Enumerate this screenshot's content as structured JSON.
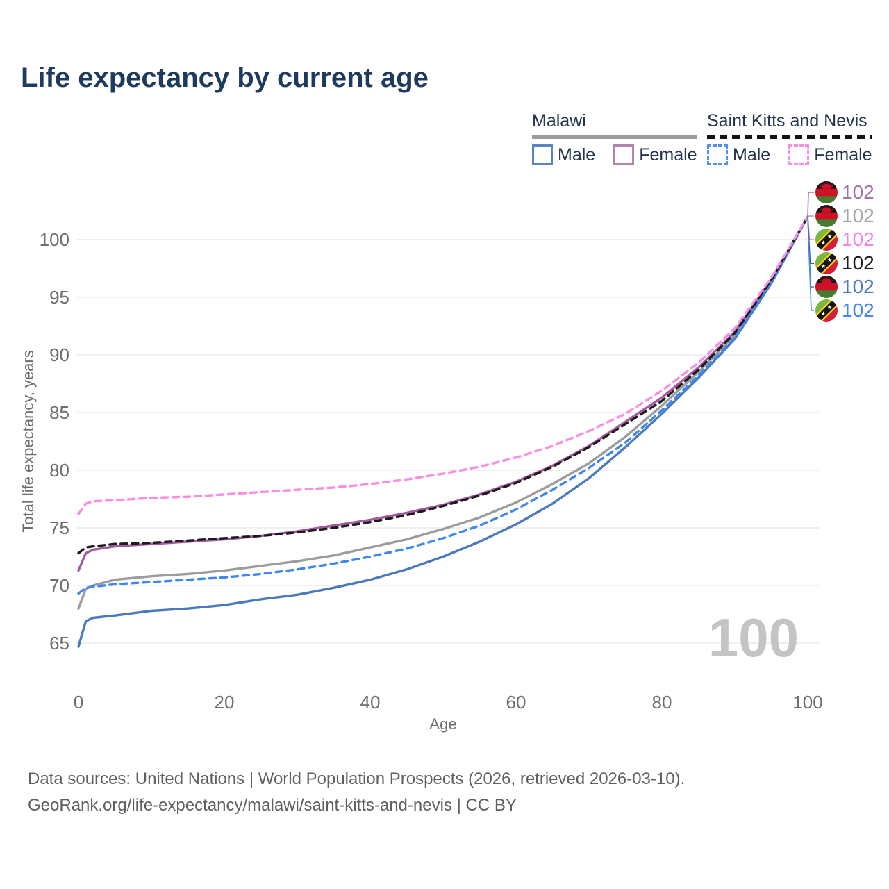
{
  "title": "Life expectancy by current age",
  "legend": {
    "groups": [
      {
        "country": "Malawi",
        "line_style": "solid",
        "underline_color": "#9a9a9a",
        "items": [
          {
            "label": "Male",
            "color": "#5b84c4"
          },
          {
            "label": "Female",
            "color": "#b283ae"
          }
        ]
      },
      {
        "country": "Saint Kitts and Nevis",
        "line_style": "dashed",
        "underline_color": "#141414",
        "items": [
          {
            "label": "Male",
            "color": "#4a90f4"
          },
          {
            "label": "Female",
            "color": "#fb8ce4"
          }
        ]
      }
    ]
  },
  "chart_data": {
    "type": "line",
    "title": "Life expectancy by current age",
    "xlabel": "Age",
    "ylabel": "Total life expectancy, years",
    "xlim": [
      0,
      100
    ],
    "ylim": [
      63,
      103
    ],
    "x_ticks": [
      0,
      20,
      40,
      60,
      80,
      100
    ],
    "y_ticks": [
      65,
      70,
      75,
      80,
      85,
      90,
      95,
      100
    ],
    "grid": "horizontal-only",
    "legend_position": "top-right",
    "watermark": "100",
    "x": [
      0,
      1,
      2,
      5,
      10,
      15,
      20,
      25,
      30,
      35,
      40,
      45,
      50,
      55,
      60,
      65,
      70,
      75,
      80,
      85,
      90,
      95,
      100
    ],
    "series": [
      {
        "name": "Malawi Male",
        "country": "Malawi",
        "sex": "Male",
        "style": "solid",
        "color": "#4b79be",
        "values": [
          64.7,
          66.9,
          67.2,
          67.4,
          67.8,
          68.0,
          68.3,
          68.8,
          69.2,
          69.8,
          70.5,
          71.4,
          72.5,
          73.8,
          75.3,
          77.1,
          79.3,
          82.0,
          84.9,
          88.0,
          91.4,
          96.2,
          102
        ]
      },
      {
        "name": "Malawi Both sexes",
        "country": "Malawi",
        "sex": "Both",
        "style": "solid",
        "color": "#9c9c9c",
        "values": [
          68.0,
          69.7,
          70.0,
          70.5,
          70.8,
          71.0,
          71.3,
          71.7,
          72.1,
          72.6,
          73.3,
          74.0,
          74.9,
          75.9,
          77.2,
          78.8,
          80.6,
          82.9,
          85.6,
          88.5,
          91.7,
          96.4,
          102
        ]
      },
      {
        "name": "Malawi Female",
        "country": "Malawi",
        "sex": "Female",
        "style": "solid",
        "color": "#a35a9e",
        "values": [
          71.3,
          72.8,
          73.1,
          73.4,
          73.6,
          73.8,
          74.0,
          74.3,
          74.7,
          75.2,
          75.7,
          76.3,
          77.0,
          77.9,
          79.0,
          80.4,
          82.1,
          84.2,
          86.3,
          88.9,
          92.0,
          96.5,
          102
        ]
      },
      {
        "name": "Saint Kitts and Nevis Male",
        "country": "Saint Kitts and Nevis",
        "sex": "Male",
        "style": "dashed",
        "color": "#3f88f0",
        "values": [
          69.3,
          69.8,
          69.9,
          70.1,
          70.3,
          70.5,
          70.7,
          71.0,
          71.4,
          71.9,
          72.5,
          73.2,
          74.1,
          75.2,
          76.6,
          78.3,
          80.2,
          82.4,
          85.2,
          88.2,
          91.5,
          96.3,
          102
        ]
      },
      {
        "name": "Saint Kitts and Nevis Both sexes",
        "country": "Saint Kitts and Nevis",
        "sex": "Both",
        "style": "dashed",
        "color": "#1c1c1c",
        "values": [
          72.8,
          73.3,
          73.4,
          73.6,
          73.7,
          73.9,
          74.1,
          74.3,
          74.6,
          75.0,
          75.5,
          76.1,
          76.9,
          77.8,
          78.9,
          80.3,
          82.0,
          84.0,
          86.0,
          88.7,
          91.9,
          96.5,
          102
        ]
      },
      {
        "name": "Saint Kitts and Nevis Female",
        "country": "Saint Kitts and Nevis",
        "sex": "Female",
        "style": "dashed",
        "color": "#fa8ce2",
        "values": [
          76.2,
          77.1,
          77.3,
          77.4,
          77.6,
          77.7,
          77.9,
          78.1,
          78.3,
          78.5,
          78.8,
          79.2,
          79.7,
          80.3,
          81.1,
          82.1,
          83.4,
          84.9,
          86.9,
          89.3,
          92.3,
          96.7,
          102
        ]
      }
    ],
    "end_labels": [
      {
        "value": "102",
        "color": "#a872ab",
        "flag": "malawi",
        "series": "Malawi Female"
      },
      {
        "value": "102",
        "color": "#a6a6a6",
        "flag": "malawi",
        "series": "Malawi Both sexes"
      },
      {
        "value": "102",
        "color": "#f884e8",
        "flag": "skn",
        "series": "Saint Kitts and Nevis Female"
      },
      {
        "value": "102",
        "color": "#1c1c1c",
        "flag": "skn",
        "series": "Saint Kitts and Nevis Both sexes"
      },
      {
        "value": "102",
        "color": "#4b79be",
        "flag": "malawi",
        "series": "Malawi Male"
      },
      {
        "value": "102",
        "color": "#3f88f0",
        "flag": "skn",
        "series": "Saint Kitts and Nevis Male"
      }
    ]
  },
  "footer": {
    "line1": "Data sources: United Nations | World Population Prospects (2026, retrieved 2026-03-10).",
    "line2": "GeoRank.org/life-expectancy/malawi/saint-kitts-and-nevis | CC BY"
  }
}
